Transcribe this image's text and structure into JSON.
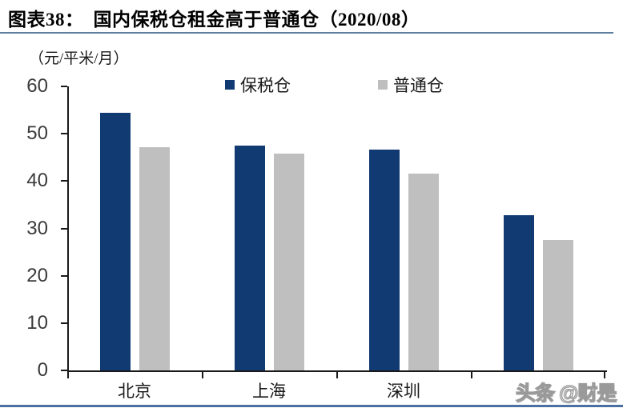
{
  "header": {
    "title": "图表38：　国内保税仓租金高于普通仓（2020/08）"
  },
  "chart_data": {
    "type": "bar",
    "title": "国内保税仓租金高于普通仓（2020/08）",
    "figure_label": "图表38",
    "unit_label": "（元/平米/月）",
    "ylabel": "元/平米/月",
    "xlabel": "",
    "categories": [
      "北京",
      "上海",
      "深圳",
      ""
    ],
    "series": [
      {
        "name": "保税仓",
        "color": "#113a73",
        "values": [
          54.4,
          47.5,
          46.6,
          32.8
        ]
      },
      {
        "name": "普通仓",
        "color": "#bfbfbf",
        "values": [
          47.1,
          45.8,
          41.5,
          27.5
        ]
      }
    ],
    "ylim": [
      0,
      60
    ],
    "yticks": [
      0,
      10,
      20,
      30,
      40,
      50,
      60
    ],
    "grid": false,
    "legend_position": "top",
    "note": "fourth category label obscured by watermark"
  },
  "watermark": {
    "text": "头条 @财是"
  },
  "colors": {
    "bar_blue": "#113a73",
    "bar_gray": "#bfbfbf",
    "title_rule": "#5f7fa1",
    "bottom_rule": "#4a70a2",
    "axis": "#1a1a1a"
  }
}
